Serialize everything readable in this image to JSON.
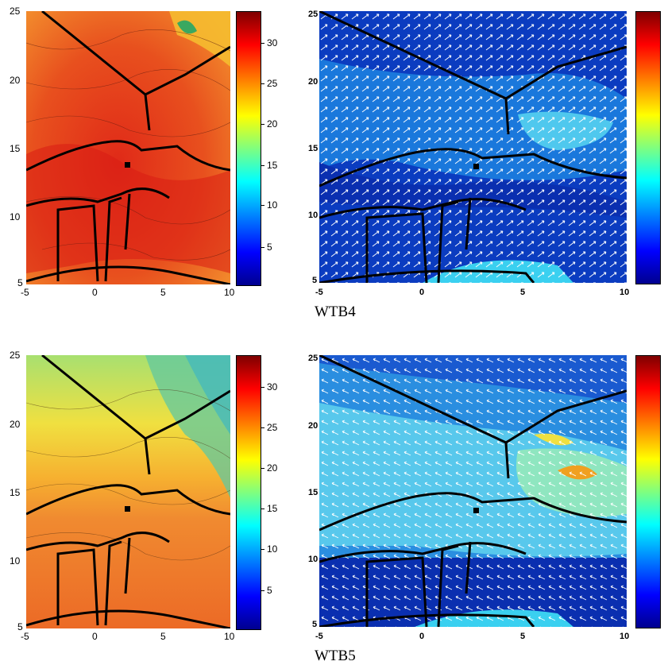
{
  "colors": {
    "temp_low": "#d94a20",
    "temp_high": "#f07a30",
    "wind_dark": "#0a2fb0",
    "wind_mid": "#1a7ae0",
    "wind_light": "#5fd0f0",
    "border": "#000000",
    "arrow": "#ffffff"
  },
  "captions": [
    "WTB4",
    "WTB5"
  ],
  "chart_data": [
    {
      "type": "heatmap",
      "panel": "WTB4-left",
      "x_ticks": [
        "-5",
        "0",
        "5",
        "10"
      ],
      "y_ticks": [
        "5",
        "10",
        "15",
        "20",
        "25"
      ],
      "xlim": [
        -5,
        10
      ],
      "ylim": [
        5,
        25
      ],
      "colorbar_ticks": [
        "5",
        "10",
        "15",
        "20",
        "25",
        "30"
      ],
      "colorbar_range": [
        0,
        34
      ],
      "marker": {
        "x": 2.5,
        "y": 13.5
      }
    },
    {
      "type": "heatmap",
      "panel": "WTB4-right",
      "x_ticks": [
        "-5",
        "0",
        "5",
        "10"
      ],
      "y_ticks": [
        "5",
        "10",
        "15",
        "20",
        "25"
      ],
      "xlim": [
        -5,
        10
      ],
      "ylim": [
        5,
        25
      ],
      "marker": {
        "x": 2.7,
        "y": 13.6
      }
    },
    {
      "type": "heatmap",
      "panel": "WTB5-left",
      "x_ticks": [
        "-5",
        "0",
        "5",
        "10"
      ],
      "y_ticks": [
        "5",
        "10",
        "15",
        "20",
        "25"
      ],
      "xlim": [
        -5,
        10
      ],
      "ylim": [
        5,
        25
      ],
      "colorbar_ticks": [
        "5",
        "10",
        "15",
        "20",
        "25",
        "30"
      ],
      "colorbar_range": [
        0,
        34
      ],
      "marker": {
        "x": 2.5,
        "y": 13.5
      }
    },
    {
      "type": "heatmap",
      "panel": "WTB5-right",
      "x_ticks": [
        "-5",
        "0",
        "5",
        "10"
      ],
      "y_ticks": [
        "5",
        "10",
        "15",
        "20",
        "25"
      ],
      "xlim": [
        -5,
        10
      ],
      "ylim": [
        5,
        25
      ],
      "marker": {
        "x": 2.7,
        "y": 13.6
      }
    }
  ]
}
